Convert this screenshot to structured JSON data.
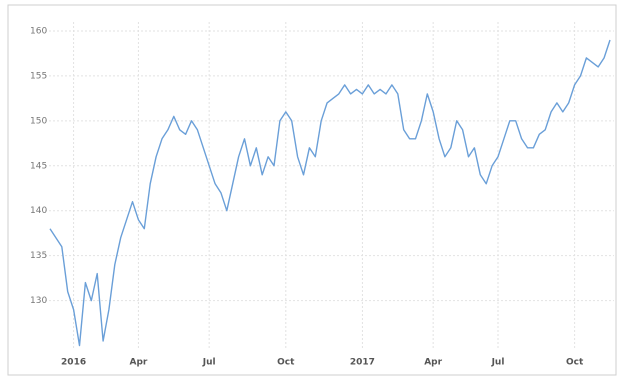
{
  "chart_data": {
    "type": "line",
    "categories": [
      null,
      null,
      null,
      null,
      "2016",
      null,
      null,
      null,
      null,
      null,
      null,
      null,
      null,
      null,
      null,
      "Apr",
      null,
      null,
      null,
      null,
      null,
      null,
      null,
      null,
      null,
      null,
      null,
      "Jul",
      null,
      null,
      null,
      null,
      null,
      null,
      null,
      null,
      null,
      null,
      null,
      null,
      "Oct",
      null,
      null,
      null,
      null,
      null,
      null,
      null,
      null,
      null,
      null,
      null,
      null,
      "2017",
      null,
      null,
      null,
      null,
      null,
      null,
      null,
      null,
      null,
      null,
      null,
      "Apr",
      null,
      null,
      null,
      null,
      null,
      null,
      null,
      null,
      null,
      null,
      "Jul",
      null,
      null,
      null,
      null,
      null,
      null,
      null,
      null,
      null,
      null,
      null,
      null,
      "Oct",
      null,
      null,
      null,
      null,
      null,
      null
    ],
    "series": [
      {
        "color": "#6a9fd8",
        "values": [
          138,
          137,
          136,
          131,
          129,
          125,
          132,
          130,
          133,
          125.5,
          129,
          134,
          137,
          139,
          141,
          139,
          138,
          143,
          146,
          148,
          149,
          150.5,
          149,
          148.5,
          150,
          149,
          147,
          145,
          143,
          142,
          140,
          143,
          146,
          148,
          145,
          147,
          144,
          146,
          145,
          150,
          151,
          150,
          146,
          144,
          147,
          146,
          150,
          152,
          152.5,
          153,
          154,
          153,
          153.5,
          153,
          154,
          153,
          153.5,
          153,
          154,
          153,
          149,
          148,
          148,
          150,
          153,
          151,
          148,
          146,
          147,
          150,
          149,
          146,
          147,
          144,
          143,
          145,
          146,
          148,
          150,
          150,
          148,
          147,
          147,
          148.5,
          149,
          151,
          152,
          151,
          152,
          154,
          155,
          157,
          156.5,
          156,
          157,
          159
        ]
      }
    ],
    "ylim": [
      124.5,
      161
    ],
    "yticks": [
      130,
      135,
      140,
      145,
      150,
      155,
      160
    ],
    "grid": true
  }
}
